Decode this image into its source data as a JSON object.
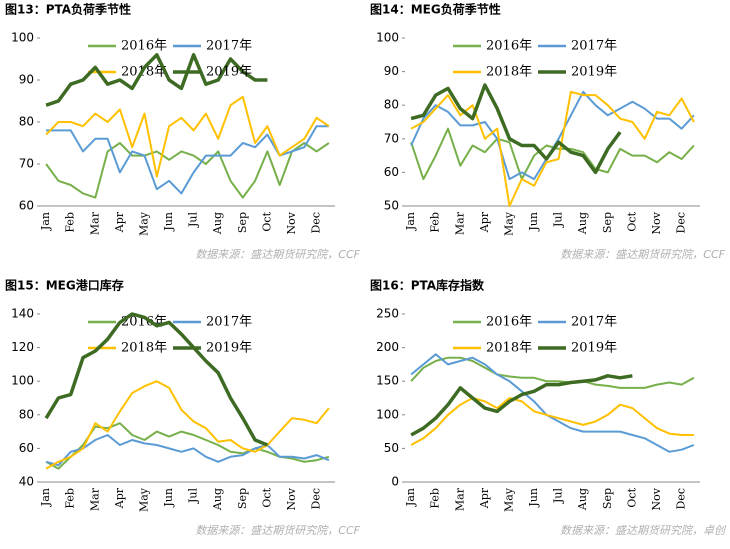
{
  "chart_data": [
    {
      "type": "line",
      "title": "图13：PTA负荷季节性",
      "source": "数据来源：盛达期货研究院，CCF",
      "categories": [
        "Jan",
        null,
        "Feb",
        null,
        "Mar",
        null,
        "Apr",
        null,
        "May",
        null,
        "Jun",
        null,
        "Jul",
        null,
        "Aug",
        null,
        "Sep",
        null,
        "Oct",
        null,
        "Nov",
        null,
        "Dec",
        null
      ],
      "ylim": [
        60,
        100
      ],
      "yticks": [
        60,
        70,
        80,
        90,
        100
      ],
      "series": [
        {
          "name": "2016年",
          "color": "#77b04a",
          "values": [
            70,
            66,
            65,
            63,
            62,
            73,
            75,
            72,
            72,
            73,
            71,
            73,
            72,
            70,
            73,
            66,
            62,
            66,
            73,
            65,
            73,
            75,
            73,
            75
          ]
        },
        {
          "name": "2017年",
          "color": "#5b9bd5",
          "values": [
            78,
            78,
            78,
            73,
            76,
            76,
            68,
            73,
            72,
            64,
            66,
            63,
            68,
            72,
            72,
            72,
            75,
            74,
            77,
            72,
            73,
            74,
            79,
            79
          ]
        },
        {
          "name": "2018年",
          "color": "#ffc000",
          "values": [
            77,
            80,
            80,
            79,
            82,
            80,
            83,
            74,
            82,
            67,
            79,
            81,
            78,
            82,
            76,
            84,
            86,
            75,
            79,
            72,
            74,
            76,
            81,
            79
          ]
        },
        {
          "name": "2019年",
          "color": "#3d6b23",
          "values": [
            84,
            85,
            89,
            90,
            93,
            89,
            90,
            88,
            93,
            96,
            90,
            88,
            96,
            89,
            90,
            95,
            92,
            90,
            90,
            null,
            null,
            null,
            null,
            null
          ]
        }
      ]
    },
    {
      "type": "line",
      "title": "图14：MEG负荷季节性",
      "source": "数据来源：盛达期货研究院，CCF",
      "categories": [
        "Jan",
        null,
        "Feb",
        null,
        "Mar",
        null,
        "Apr",
        null,
        "May",
        null,
        "Jun",
        null,
        "Jul",
        null,
        "Aug",
        null,
        "Sep",
        null,
        "Oct",
        null,
        "Nov",
        null,
        "Dec",
        null
      ],
      "ylim": [
        50,
        100
      ],
      "yticks": [
        50,
        60,
        70,
        80,
        90,
        100
      ],
      "series": [
        {
          "name": "2016年",
          "color": "#77b04a",
          "values": [
            69,
            58,
            65,
            73,
            62,
            68,
            66,
            70,
            69,
            58,
            65,
            68,
            67,
            67,
            66,
            61,
            60,
            67,
            65,
            65,
            63,
            66,
            64,
            68
          ]
        },
        {
          "name": "2017年",
          "color": "#5b9bd5",
          "values": [
            68,
            76,
            80,
            78,
            74,
            74,
            75,
            70,
            58,
            60,
            58,
            64,
            70,
            77,
            84,
            80,
            77,
            79,
            81,
            79,
            76,
            76,
            73,
            77
          ]
        },
        {
          "name": "2018年",
          "color": "#ffc000",
          "values": [
            73,
            75,
            79,
            83,
            77,
            80,
            70,
            73,
            50,
            58,
            56,
            63,
            64,
            84,
            83,
            83,
            80,
            76,
            75,
            70,
            78,
            77,
            82,
            75
          ]
        },
        {
          "name": "2019年",
          "color": "#3d6b23",
          "values": [
            76,
            77,
            83,
            85,
            79,
            76,
            86,
            79,
            70,
            68,
            68,
            64,
            69,
            66,
            65,
            60,
            67,
            72,
            null,
            null,
            null,
            null,
            null,
            null
          ]
        }
      ]
    },
    {
      "type": "line",
      "title": "图15：MEG港口库存",
      "source": "数据来源：盛达期货研究院，CCF",
      "categories": [
        "Jan",
        null,
        "Feb",
        null,
        "Mar",
        null,
        "Apr",
        null,
        "May",
        null,
        "Jun",
        null,
        "Jul",
        null,
        "Aug",
        null,
        "Sep",
        null,
        "Oct",
        null,
        "Nov",
        null,
        "Dec",
        null
      ],
      "ylim": [
        40,
        140
      ],
      "yticks": [
        40,
        60,
        80,
        100,
        120,
        140
      ],
      "series": [
        {
          "name": "2016年",
          "color": "#77b04a",
          "values": [
            52,
            48,
            55,
            62,
            73,
            72,
            75,
            68,
            65,
            70,
            67,
            70,
            68,
            65,
            62,
            58,
            57,
            60,
            58,
            55,
            54,
            52,
            53,
            55
          ]
        },
        {
          "name": "2017年",
          "color": "#5b9bd5",
          "values": [
            52,
            50,
            58,
            60,
            65,
            68,
            62,
            65,
            63,
            62,
            60,
            58,
            60,
            55,
            52,
            55,
            56,
            60,
            62,
            55,
            55,
            54,
            56,
            53
          ]
        },
        {
          "name": "2018年",
          "color": "#ffc000",
          "values": [
            48,
            52,
            55,
            60,
            75,
            70,
            82,
            93,
            97,
            100,
            96,
            83,
            76,
            72,
            64,
            65,
            60,
            58,
            62,
            70,
            78,
            77,
            75,
            84
          ]
        },
        {
          "name": "2019年",
          "color": "#3d6b23",
          "values": [
            78,
            90,
            92,
            114,
            118,
            125,
            135,
            140,
            138,
            133,
            135,
            128,
            120,
            112,
            105,
            90,
            78,
            65,
            62,
            null,
            null,
            null,
            null,
            null
          ]
        }
      ]
    },
    {
      "type": "line",
      "title": "图16：PTA库存指数",
      "source": "数据来源：盛达期货研究院，卓创",
      "categories": [
        "Jan",
        null,
        "Feb",
        null,
        "Mar",
        null,
        "Apr",
        null,
        "May",
        null,
        "Jun",
        null,
        "Jul",
        null,
        "Aug",
        null,
        "Sep",
        null,
        "Oct",
        null,
        "Nov",
        null,
        "Dec",
        null
      ],
      "ylim": [
        0,
        250
      ],
      "yticks": [
        0,
        50,
        100,
        150,
        200,
        250
      ],
      "series": [
        {
          "name": "2016年",
          "color": "#77b04a",
          "values": [
            150,
            170,
            180,
            185,
            185,
            180,
            170,
            160,
            157,
            155,
            155,
            150,
            150,
            148,
            150,
            145,
            143,
            140,
            140,
            140,
            145,
            148,
            145,
            155
          ]
        },
        {
          "name": "2017年",
          "color": "#5b9bd5",
          "values": [
            160,
            175,
            190,
            175,
            180,
            185,
            175,
            160,
            150,
            135,
            120,
            100,
            90,
            80,
            75,
            75,
            75,
            75,
            70,
            65,
            55,
            45,
            48,
            55
          ]
        },
        {
          "name": "2018年",
          "color": "#ffc000",
          "values": [
            55,
            65,
            80,
            100,
            115,
            125,
            120,
            110,
            125,
            120,
            105,
            100,
            95,
            90,
            85,
            90,
            100,
            115,
            110,
            95,
            80,
            72,
            70,
            70
          ]
        },
        {
          "name": "2019年",
          "color": "#3d6b23",
          "values": [
            70,
            80,
            95,
            115,
            140,
            125,
            110,
            105,
            120,
            130,
            135,
            145,
            145,
            148,
            150,
            152,
            158,
            155,
            158,
            null,
            null,
            null,
            null,
            null
          ]
        }
      ]
    }
  ]
}
